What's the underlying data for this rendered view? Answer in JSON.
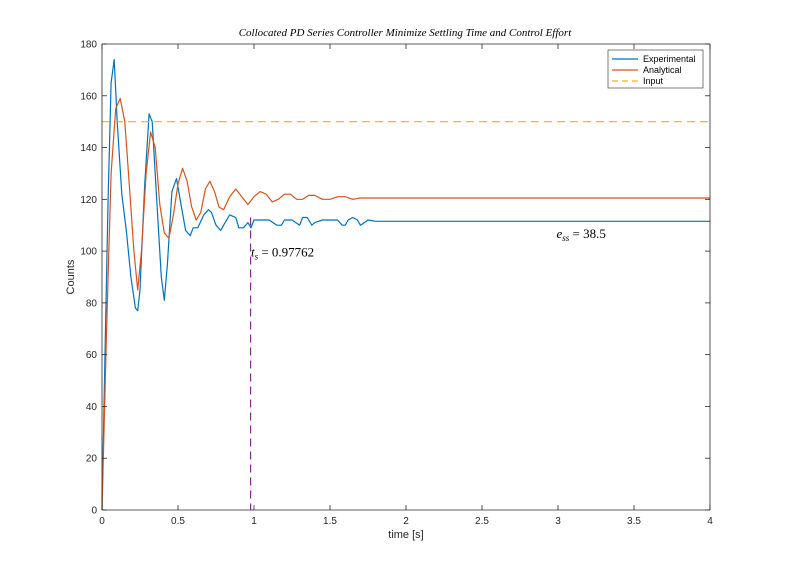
{
  "chart_data": {
    "type": "line",
    "title": "Collocated PD Series Controller Minimize Settling Time and Control Effort",
    "xlabel": "time [s]",
    "ylabel": "Counts",
    "xlim": [
      0,
      4
    ],
    "ylim": [
      0,
      180
    ],
    "xticks": [
      0,
      0.5,
      1,
      1.5,
      2,
      2.5,
      3,
      3.5,
      4
    ],
    "xtick_labels": [
      "0",
      "0.5",
      "1",
      "1.5",
      "2",
      "2.5",
      "3",
      "3.5",
      "4"
    ],
    "yticks": [
      0,
      20,
      40,
      60,
      80,
      100,
      120,
      140,
      160,
      180
    ],
    "ytick_labels": [
      "0",
      "20",
      "40",
      "60",
      "80",
      "100",
      "120",
      "140",
      "160",
      "180"
    ],
    "grid": false,
    "legend_position": "top-right",
    "series": [
      {
        "name": "Experimental",
        "color": "#0072BD",
        "style": "solid",
        "x": [
          0,
          0.02,
          0.04,
          0.06,
          0.08,
          0.1,
          0.13,
          0.16,
          0.19,
          0.22,
          0.235,
          0.25,
          0.28,
          0.31,
          0.33,
          0.36,
          0.39,
          0.41,
          0.43,
          0.46,
          0.49,
          0.52,
          0.55,
          0.58,
          0.6,
          0.63,
          0.67,
          0.7,
          0.72,
          0.75,
          0.78,
          0.8,
          0.84,
          0.88,
          0.9,
          0.93,
          0.96,
          0.98,
          1.0,
          1.05,
          1.1,
          1.15,
          1.18,
          1.2,
          1.25,
          1.3,
          1.32,
          1.35,
          1.38,
          1.4,
          1.45,
          1.5,
          1.55,
          1.58,
          1.6,
          1.62,
          1.65,
          1.68,
          1.7,
          1.75,
          1.8,
          2.0,
          2.5,
          3.0,
          3.5,
          4.0
        ],
        "y": [
          0,
          60,
          120,
          165,
          174,
          150,
          122,
          108,
          90,
          78,
          77,
          85,
          125,
          153,
          150,
          120,
          90,
          81,
          95,
          123,
          128,
          118,
          108,
          106,
          109,
          109,
          114,
          116,
          115,
          110,
          108,
          110,
          114,
          113,
          109,
          109,
          111,
          109,
          112,
          112,
          112,
          110,
          110,
          112,
          112,
          110,
          113,
          113,
          110,
          111,
          112,
          112,
          112,
          110,
          110,
          112,
          113,
          112,
          110,
          112,
          111.5,
          111.5,
          111.5,
          111.5,
          111.5,
          111.5
        ]
      },
      {
        "name": "Analytical",
        "color": "#D95319",
        "style": "solid",
        "x": [
          0,
          0.03,
          0.06,
          0.09,
          0.12,
          0.15,
          0.18,
          0.21,
          0.235,
          0.26,
          0.29,
          0.32,
          0.35,
          0.38,
          0.41,
          0.44,
          0.47,
          0.5,
          0.53,
          0.56,
          0.59,
          0.62,
          0.65,
          0.68,
          0.71,
          0.74,
          0.77,
          0.8,
          0.84,
          0.88,
          0.92,
          0.96,
          1.0,
          1.04,
          1.08,
          1.12,
          1.16,
          1.2,
          1.24,
          1.28,
          1.32,
          1.36,
          1.4,
          1.45,
          1.5,
          1.55,
          1.6,
          1.65,
          1.7,
          1.8,
          1.9,
          2.0,
          2.5,
          3.0,
          3.5,
          4.0
        ],
        "y": [
          0,
          70,
          130,
          155,
          159,
          150,
          125,
          100,
          85,
          100,
          130,
          146,
          140,
          118,
          107,
          105,
          114,
          126,
          132,
          127,
          117,
          112,
          115,
          124,
          127,
          123,
          117,
          116,
          121,
          124,
          121,
          118,
          121,
          123,
          122,
          119,
          120,
          122,
          122,
          120,
          120,
          121.5,
          121.5,
          120,
          120,
          121,
          121,
          120,
          120.5,
          120.5,
          120.5,
          120.5,
          120.5,
          120.5,
          120.5,
          120.5
        ]
      },
      {
        "name": "Input",
        "color": "#EDB120",
        "style": "dashed",
        "x": [
          0,
          4
        ],
        "y": [
          150,
          150
        ]
      }
    ],
    "settling_marker": {
      "x": 0.97762,
      "y_top": 113,
      "color": "#7E2F8E"
    },
    "annotations": [
      {
        "id": "ts",
        "base": "t",
        "subscript": "s",
        "text": "=  0.97762",
        "x": 0.98,
        "y": 98
      },
      {
        "id": "ess",
        "base": "e",
        "subscript": "ss",
        "text": "=  38.5",
        "x": 2.99,
        "y": 105
      }
    ]
  }
}
